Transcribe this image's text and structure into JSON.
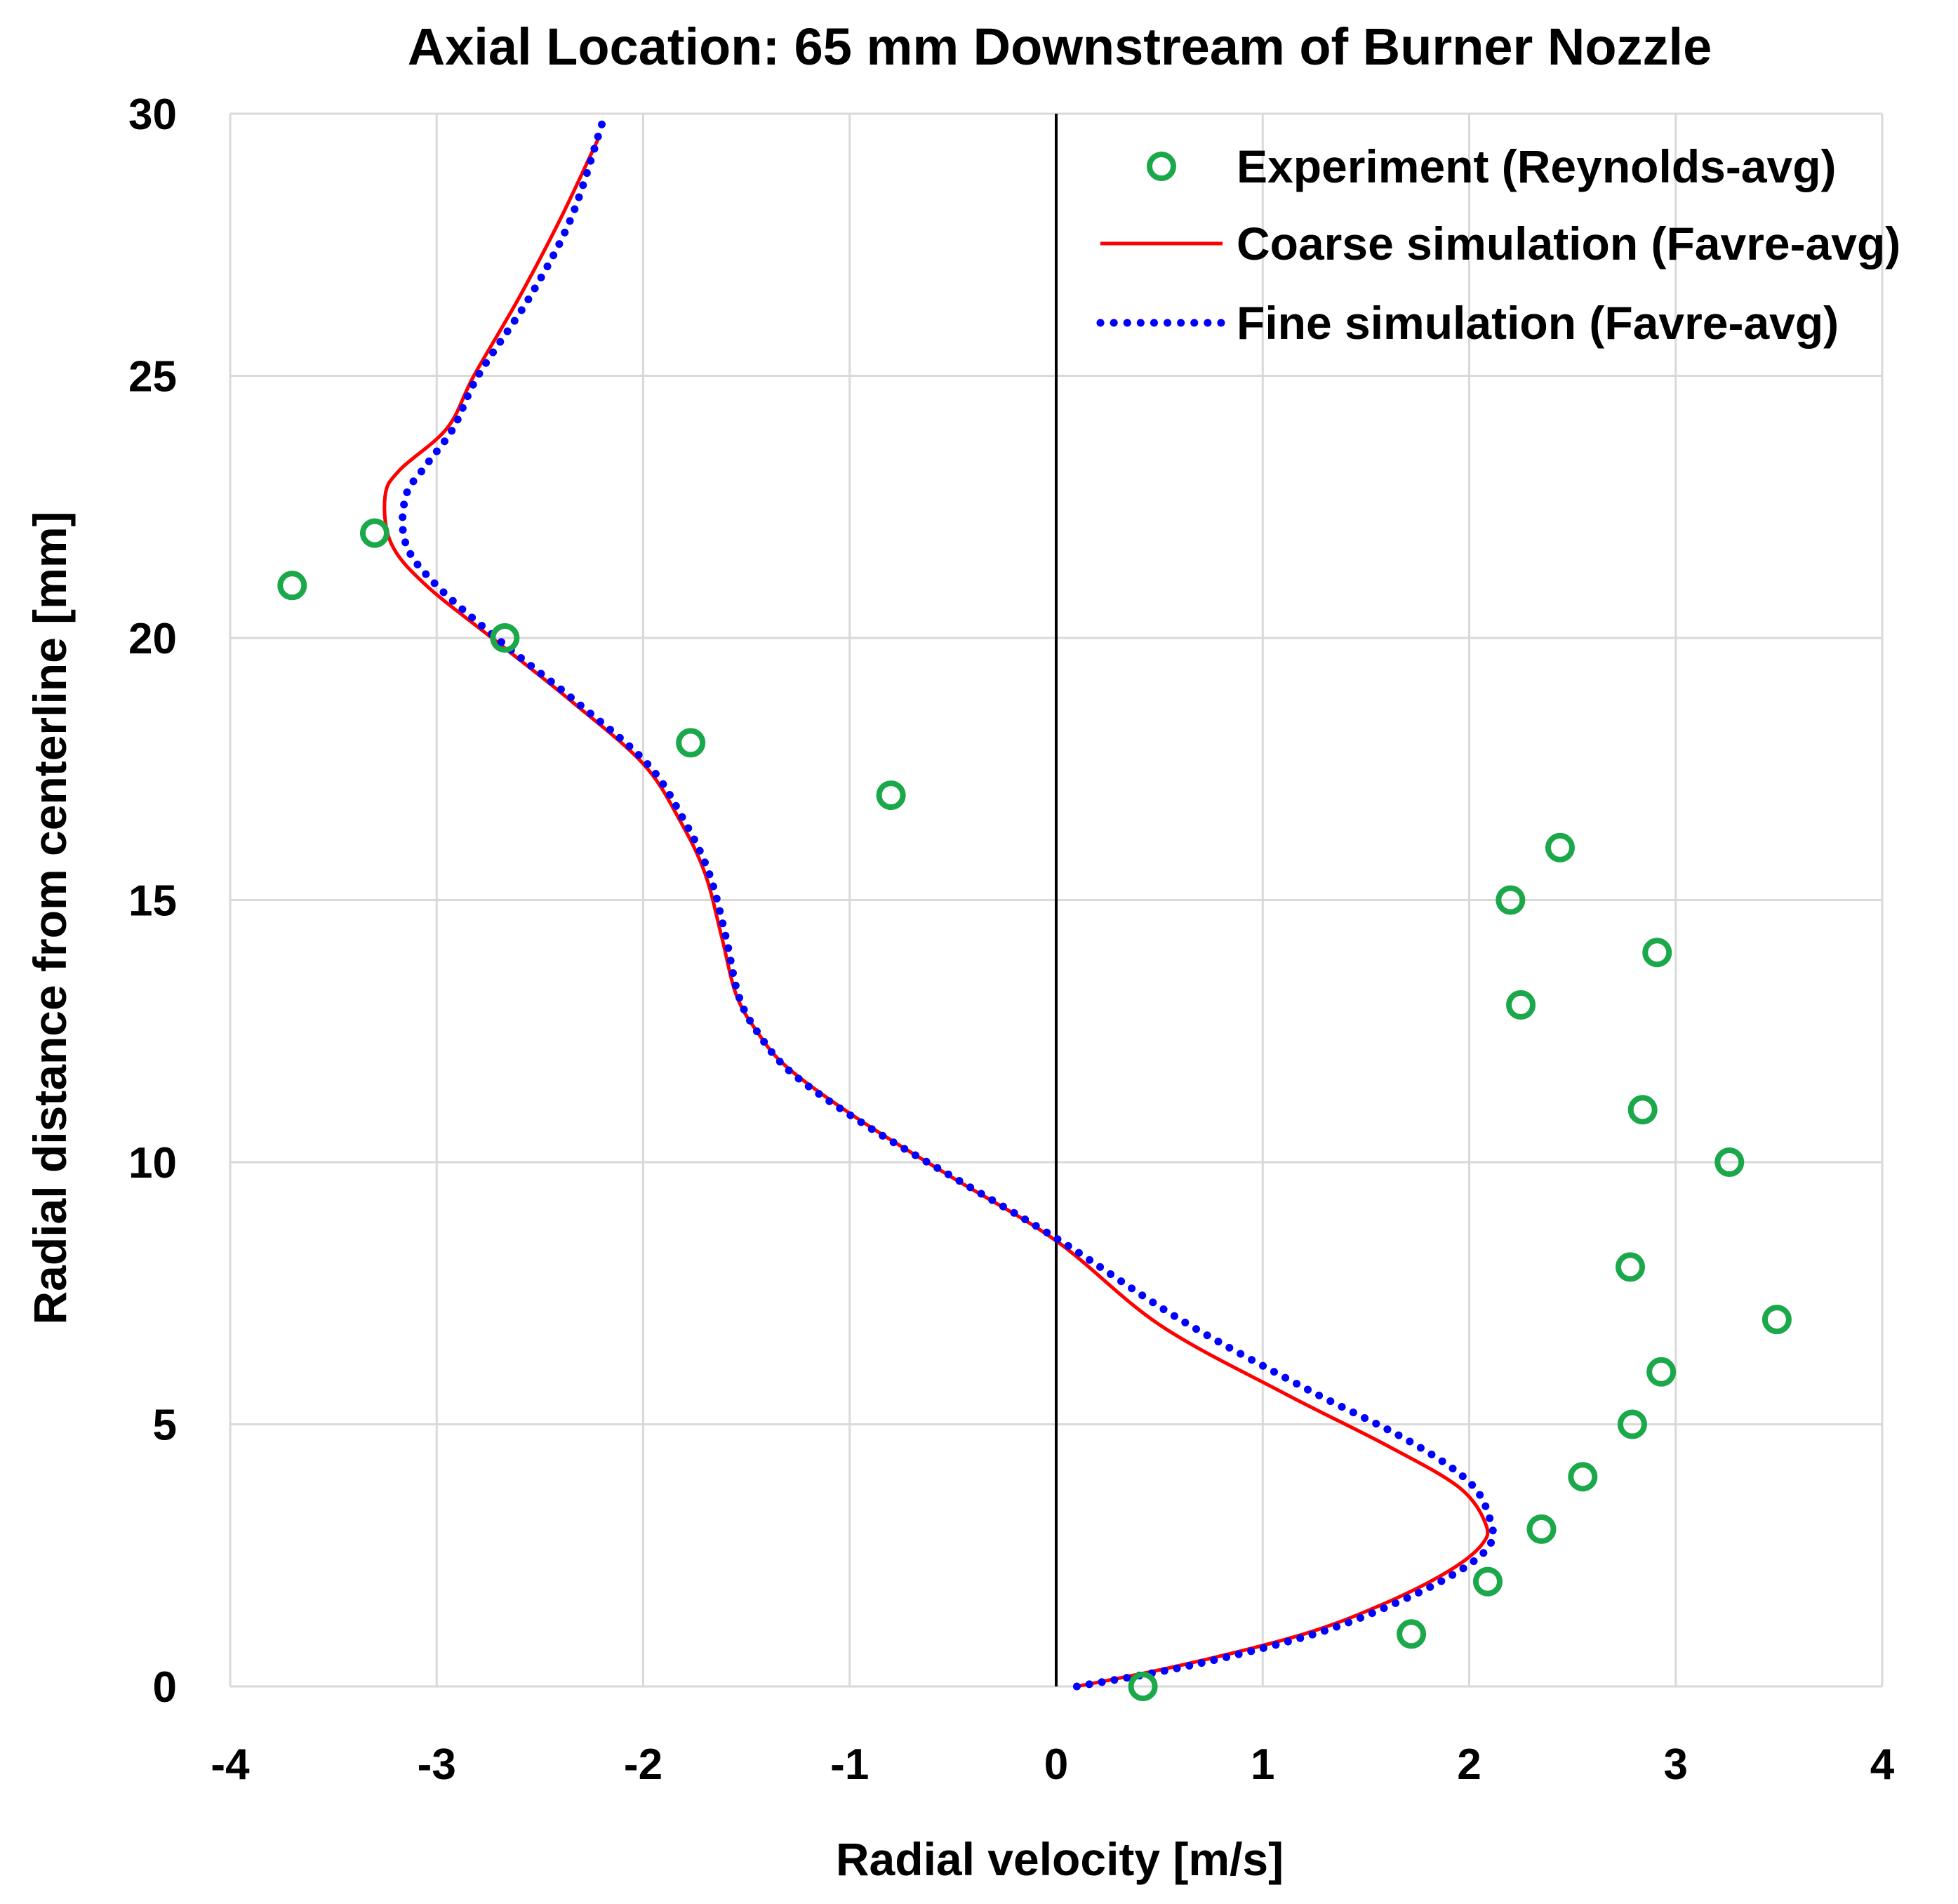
{
  "chart_data": {
    "type": "scatter",
    "title": "Axial Location: 65 mm Downstream of Burner Nozzle",
    "xlabel": "Radial velocity [m/s]",
    "ylabel": "Radial distance from centerline [mm]",
    "xlim": [
      -4,
      4
    ],
    "ylim": [
      0,
      30
    ],
    "xticks": [
      -4,
      -3,
      -2,
      -1,
      0,
      1,
      2,
      3,
      4
    ],
    "yticks": [
      0,
      5,
      10,
      15,
      20,
      25,
      30
    ],
    "grid": true,
    "legend_position": "top-right",
    "colors": {
      "experiment": "#1aa84a",
      "coarse": "#ff0000",
      "fine": "#0000ff",
      "grid": "#d9d9d9",
      "zero_line": "#000000"
    },
    "series": [
      {
        "name": "Experiment (Reynolds-avg)",
        "kind": "markers",
        "marker": "open-circle",
        "x": [
          0.42,
          1.72,
          2.09,
          2.35,
          2.55,
          2.79,
          2.93,
          3.49,
          2.78,
          3.26,
          2.84,
          2.25,
          2.91,
          2.2,
          2.44,
          -0.8,
          -1.77,
          -2.67,
          -3.3,
          -3.7
        ],
        "y": [
          0,
          1,
          2,
          3,
          4,
          5,
          6,
          7,
          8,
          10,
          11,
          13,
          14,
          15,
          16,
          17,
          18,
          20,
          22,
          21
        ]
      },
      {
        "name": "Coarse simulation (Favre-avg)",
        "kind": "line",
        "style": "solid",
        "x": [
          0.1,
          0.6,
          1.2,
          1.6,
          1.9,
          2.06,
          2.08,
          1.95,
          1.6,
          1.1,
          0.5,
          0.0,
          -0.5,
          -0.95,
          -1.3,
          -1.45,
          -1.55,
          -1.62,
          -1.7,
          -1.82,
          -2.0,
          -2.35,
          -2.7,
          -3.05,
          -3.22,
          -3.25,
          -3.18,
          -2.95,
          -2.82,
          -2.6,
          -2.4,
          -2.22
        ],
        "y": [
          0,
          0.4,
          1.0,
          1.6,
          2.2,
          2.7,
          3.1,
          3.8,
          4.6,
          5.6,
          6.9,
          8.5,
          9.7,
          10.8,
          11.8,
          12.5,
          13.2,
          14.3,
          15.5,
          16.5,
          17.6,
          18.8,
          19.9,
          21.0,
          21.8,
          22.7,
          23.2,
          24.0,
          25.0,
          26.5,
          28.0,
          29.5
        ]
      },
      {
        "name": "Fine simulation (Favre-avg)",
        "kind": "line",
        "style": "dotted",
        "x": [
          0.1,
          0.65,
          1.25,
          1.65,
          1.95,
          2.1,
          2.1,
          2.0,
          1.7,
          1.2,
          0.6,
          0.02,
          -0.45,
          -0.92,
          -1.28,
          -1.45,
          -1.54,
          -1.6,
          -1.68,
          -1.8,
          -1.98,
          -2.33,
          -2.68,
          -3.0,
          -3.15,
          -3.15,
          -3.05,
          -2.92,
          -2.8,
          -2.55,
          -2.35,
          -2.2
        ],
        "y": [
          0,
          0.4,
          1.0,
          1.6,
          2.2,
          2.7,
          3.2,
          3.9,
          4.7,
          5.7,
          7.0,
          8.5,
          9.6,
          10.7,
          11.7,
          12.5,
          13.2,
          14.3,
          15.5,
          16.5,
          17.6,
          18.8,
          19.9,
          21.0,
          21.8,
          22.7,
          23.3,
          24.0,
          25.0,
          26.5,
          28.0,
          29.8
        ]
      }
    ]
  }
}
